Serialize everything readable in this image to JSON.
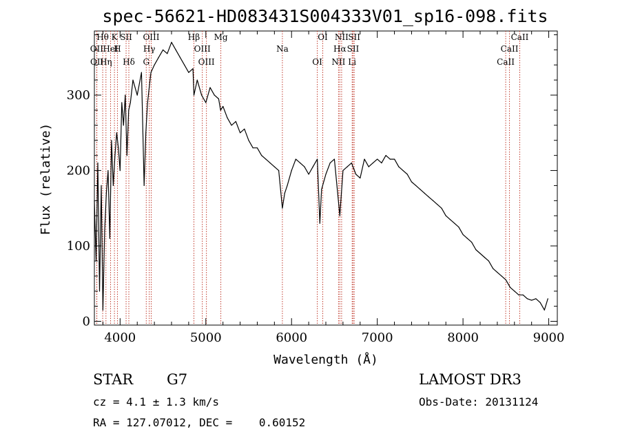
{
  "chart_data": {
    "type": "line",
    "title": "spec-56621-HD083431S004333V01_sp16-098.fits",
    "xlabel": "Wavelength (Å)",
    "ylabel": "Flux (relative)",
    "xlim": [
      3700,
      9100
    ],
    "ylim": [
      -5,
      385
    ],
    "x_ticks": [
      4000,
      5000,
      6000,
      7000,
      8000,
      9000
    ],
    "y_ticks": [
      0,
      100,
      200,
      300
    ],
    "grid": false,
    "series": [
      {
        "color": "#000000",
        "x": [
          3700,
          3720,
          3740,
          3760,
          3780,
          3800,
          3820,
          3840,
          3860,
          3880,
          3900,
          3920,
          3940,
          3960,
          3980,
          4000,
          4020,
          4040,
          4060,
          4080,
          4100,
          4120,
          4150,
          4200,
          4250,
          4280,
          4300,
          4320,
          4340,
          4360,
          4400,
          4450,
          4500,
          4550,
          4600,
          4650,
          4700,
          4750,
          4800,
          4850,
          4861,
          4900,
          4950,
          5000,
          5050,
          5100,
          5150,
          5172,
          5200,
          5250,
          5300,
          5350,
          5400,
          5450,
          5500,
          5550,
          5600,
          5650,
          5700,
          5750,
          5800,
          5850,
          5893,
          5920,
          5950,
          6000,
          6050,
          6100,
          6150,
          6200,
          6250,
          6300,
          6330,
          6350,
          6400,
          6450,
          6500,
          6563,
          6600,
          6650,
          6700,
          6750,
          6800,
          6850,
          6900,
          6950,
          7000,
          7050,
          7100,
          7150,
          7200,
          7250,
          7300,
          7350,
          7400,
          7450,
          7500,
          7550,
          7600,
          7650,
          7700,
          7750,
          7800,
          7850,
          7900,
          7950,
          8000,
          8050,
          8100,
          8150,
          8200,
          8250,
          8300,
          8350,
          8400,
          8450,
          8500,
          8550,
          8600,
          8650,
          8700,
          8750,
          8800,
          8850,
          8900,
          8950,
          8990
        ],
        "y": [
          160,
          80,
          210,
          40,
          180,
          15,
          120,
          170,
          200,
          110,
          240,
          180,
          220,
          250,
          230,
          200,
          290,
          260,
          300,
          220,
          280,
          290,
          320,
          300,
          330,
          180,
          250,
          290,
          310,
          330,
          340,
          350,
          360,
          355,
          370,
          360,
          350,
          340,
          330,
          335,
          300,
          320,
          300,
          290,
          310,
          300,
          295,
          280,
          285,
          270,
          260,
          265,
          250,
          255,
          240,
          230,
          230,
          220,
          215,
          210,
          205,
          200,
          150,
          170,
          180,
          200,
          215,
          210,
          205,
          195,
          205,
          215,
          130,
          175,
          195,
          210,
          215,
          140,
          200,
          205,
          210,
          195,
          190,
          215,
          205,
          210,
          215,
          210,
          220,
          215,
          215,
          205,
          200,
          195,
          185,
          180,
          175,
          170,
          165,
          160,
          155,
          150,
          140,
          135,
          130,
          125,
          115,
          110,
          105,
          95,
          90,
          85,
          80,
          70,
          65,
          60,
          55,
          45,
          40,
          35,
          35,
          30,
          28,
          30,
          25,
          15,
          30
        ]
      }
    ],
    "spectral_lines": [
      {
        "label": "Hθ",
        "x": 3797
      },
      {
        "label": "OII",
        "x": 3727
      },
      {
        "label": "OII",
        "x": 3729
      },
      {
        "label": "K",
        "x": 3934
      },
      {
        "label": "HeI",
        "x": 3889
      },
      {
        "label": "Hη",
        "x": 3835
      },
      {
        "label": "SII",
        "x": 4070
      },
      {
        "label": "H",
        "x": 3969
      },
      {
        "label": "Hδ",
        "x": 4102
      },
      {
        "label": "OIII",
        "x": 4363
      },
      {
        "label": "Hγ",
        "x": 4340
      },
      {
        "label": "G",
        "x": 4305
      },
      {
        "label": "Hβ",
        "x": 4861
      },
      {
        "label": "OIII",
        "x": 4959
      },
      {
        "label": "OIII",
        "x": 5007
      },
      {
        "label": "Mg",
        "x": 5175
      },
      {
        "label": "Na",
        "x": 5893
      },
      {
        "label": "OI",
        "x": 6300
      },
      {
        "label": "OI",
        "x": 6364
      },
      {
        "label": "Hα",
        "x": 6563
      },
      {
        "label": "NII",
        "x": 6548
      },
      {
        "label": "NII",
        "x": 6584
      },
      {
        "label": "SII",
        "x": 6717
      },
      {
        "label": "Li",
        "x": 6707
      },
      {
        "label": "SII",
        "x": 6731
      },
      {
        "label": "CaII",
        "x": 8542
      },
      {
        "label": "CaII",
        "x": 8498
      },
      {
        "label": "CaII",
        "x": 8662
      }
    ]
  },
  "info": {
    "object_class": "STAR",
    "subclass": "G7",
    "survey": "LAMOST DR3",
    "cz": "cz = 4.1 ± 1.3 km/s",
    "obs_date": "Obs-Date: 20131124",
    "coordinates": "RA = 127.07012, DEC =    0.60152"
  }
}
